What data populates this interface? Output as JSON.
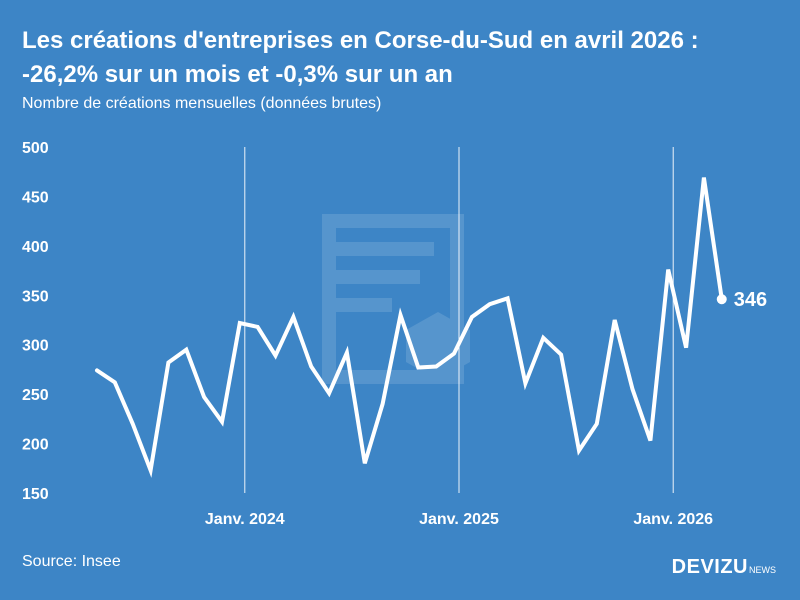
{
  "title": {
    "line1": "Les créations d'entreprises en Corse-du-Sud en avril 2026 :",
    "line2": "-26,2% sur un mois et -0,3% sur un an"
  },
  "subtitle": "Nombre de créations mensuelles (données brutes)",
  "source": "Source: Insee",
  "brand": {
    "name": "DEVIZU",
    "suffix": "NEWS"
  },
  "colors": {
    "background": "#3d85c6",
    "line": "#ffffff"
  },
  "chart_data": {
    "type": "line",
    "title": "Les créations d'entreprises en Corse-du-Sud en avril 2026 : -26,2% sur un mois et -0,3% sur un an",
    "ylabel": "",
    "xlabel": "",
    "ylim": [
      150,
      500
    ],
    "yticks": [
      150,
      200,
      250,
      300,
      350,
      400,
      450,
      500
    ],
    "grid": false,
    "x_markers": [
      {
        "label": "Janv. 2024",
        "index": 8
      },
      {
        "label": "Janv. 2025",
        "index": 20
      },
      {
        "label": "Janv. 2026",
        "index": 32
      }
    ],
    "x": [
      "2023-05",
      "2023-06",
      "2023-07",
      "2023-08",
      "2023-09",
      "2023-10",
      "2023-11",
      "2023-12",
      "2024-01",
      "2024-02",
      "2024-03",
      "2024-04",
      "2024-05",
      "2024-06",
      "2024-07",
      "2024-08",
      "2024-09",
      "2024-10",
      "2024-11",
      "2024-12",
      "2025-01",
      "2025-02",
      "2025-03",
      "2025-04",
      "2025-05",
      "2025-06",
      "2025-07",
      "2025-08",
      "2025-09",
      "2025-10",
      "2025-11",
      "2025-12",
      "2026-01",
      "2026-02",
      "2026-03",
      "2026-04"
    ],
    "series": [
      {
        "values": [
          274,
          262,
          220,
          173,
          282,
          295,
          247,
          222,
          322,
          318,
          289,
          328,
          278,
          251,
          292,
          180,
          240,
          330,
          277,
          278,
          291,
          328,
          341,
          347,
          261,
          307,
          290,
          193,
          220,
          325,
          255,
          203,
          376,
          297,
          469,
          346
        ]
      }
    ],
    "end_label": "346"
  }
}
